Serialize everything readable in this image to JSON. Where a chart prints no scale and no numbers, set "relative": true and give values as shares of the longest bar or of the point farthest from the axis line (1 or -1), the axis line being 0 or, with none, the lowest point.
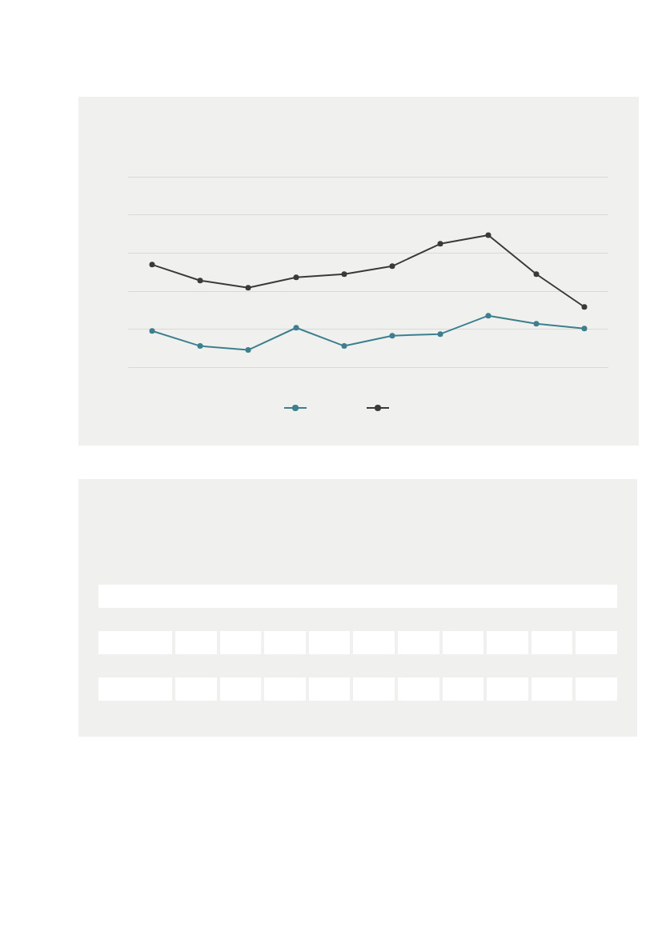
{
  "chart_data": {
    "type": "line",
    "relative": true,
    "categories": [
      null,
      null,
      null,
      null,
      null,
      null,
      null,
      null,
      null,
      null
    ],
    "series": [
      {
        "color": "#3d7f8e",
        "values": [
          0.277,
          0.163,
          0.133,
          0.301,
          0.163,
          0.241,
          0.253,
          0.392,
          0.331,
          0.295
        ]
      },
      {
        "color": "#3a3a3a",
        "values": [
          0.777,
          0.657,
          0.602,
          0.681,
          0.705,
          0.765,
          0.934,
          1,
          0.705,
          0.458
        ]
      }
    ],
    "grid": "y",
    "marker": "circle",
    "line_style": "solid"
  }
}
